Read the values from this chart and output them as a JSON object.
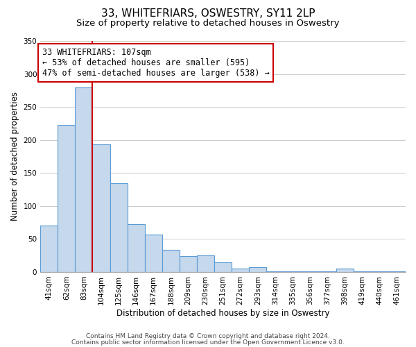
{
  "title": "33, WHITEFRIARS, OSWESTRY, SY11 2LP",
  "subtitle": "Size of property relative to detached houses in Oswestry",
  "xlabel": "Distribution of detached houses by size in Oswestry",
  "ylabel": "Number of detached properties",
  "bar_values": [
    70,
    223,
    280,
    193,
    135,
    72,
    57,
    34,
    24,
    25,
    15,
    5,
    7,
    1,
    1,
    1,
    1,
    5,
    1,
    1,
    1
  ],
  "categories": [
    "41sqm",
    "62sqm",
    "83sqm",
    "104sqm",
    "125sqm",
    "146sqm",
    "167sqm",
    "188sqm",
    "209sqm",
    "230sqm",
    "251sqm",
    "272sqm",
    "293sqm",
    "314sqm",
    "335sqm",
    "356sqm",
    "377sqm",
    "398sqm",
    "419sqm",
    "440sqm",
    "461sqm"
  ],
  "bar_color": "#c5d8ec",
  "bar_edge_color": "#5b9bd5",
  "vline_x": 2.5,
  "vline_color": "#cc0000",
  "ylim": [
    0,
    350
  ],
  "yticks": [
    0,
    50,
    100,
    150,
    200,
    250,
    300,
    350
  ],
  "annotation_text": "33 WHITEFRIARS: 107sqm\n← 53% of detached houses are smaller (595)\n47% of semi-detached houses are larger (538) →",
  "annotation_box_color": "#ffffff",
  "annotation_box_edge_color": "#cc0000",
  "footer_line1": "Contains HM Land Registry data © Crown copyright and database right 2024.",
  "footer_line2": "Contains public sector information licensed under the Open Government Licence v3.0.",
  "background_color": "#ffffff",
  "grid_color": "#cccccc",
  "title_fontsize": 11,
  "subtitle_fontsize": 9.5,
  "axis_label_fontsize": 8.5,
  "tick_fontsize": 7.5,
  "annotation_fontsize": 8.5,
  "footer_fontsize": 6.5
}
